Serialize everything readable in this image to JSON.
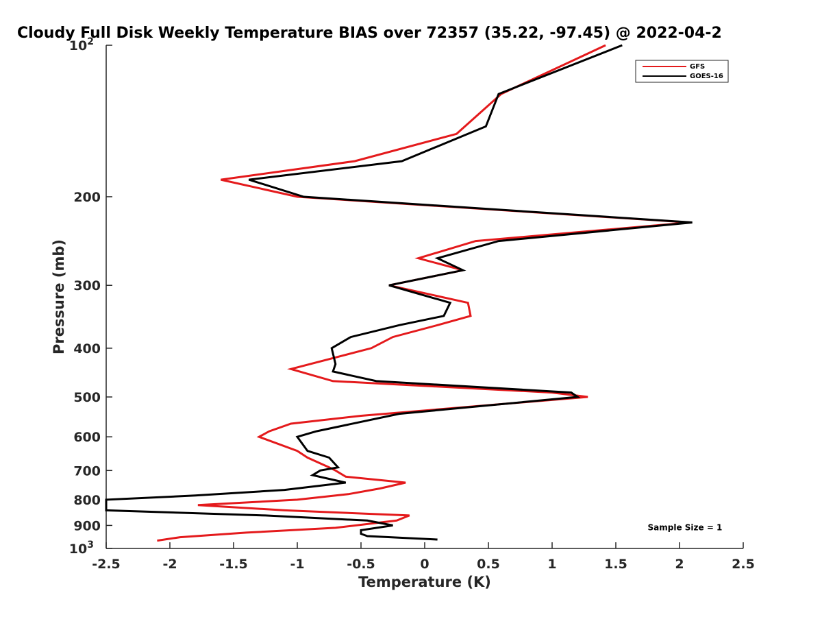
{
  "chart_data": {
    "type": "line",
    "title": "Cloudy Full Disk Weekly Temperature BIAS over 72357 (35.22, -97.45) @ 2022-04-2",
    "xlabel": "Temperature (K)",
    "ylabel": "Pressure (mb)",
    "xlim": [
      -2.5,
      2.5
    ],
    "ylim": [
      100,
      1000
    ],
    "yscale": "log",
    "y_reversed": true,
    "grid": false,
    "legend_position": "top-right",
    "x_ticks": [
      -2.5,
      -2,
      -1.5,
      -1,
      -0.5,
      0,
      0.5,
      1,
      1.5,
      2,
      2.5
    ],
    "x_tick_labels": [
      "-2.5",
      "-2",
      "-1.5",
      "-1",
      "-0.5",
      "0",
      "0.5",
      "1",
      "1.5",
      "2",
      "2.5"
    ],
    "y_ticks": [
      {
        "value": 100,
        "base": "10",
        "exp": "2"
      },
      {
        "value": 200,
        "label": "200"
      },
      {
        "value": 300,
        "label": "300"
      },
      {
        "value": 400,
        "label": "400"
      },
      {
        "value": 500,
        "label": "500"
      },
      {
        "value": 600,
        "label": "600"
      },
      {
        "value": 700,
        "label": "700"
      },
      {
        "value": 800,
        "label": "800"
      },
      {
        "value": 900,
        "label": "900"
      },
      {
        "value": 1000,
        "base": "10",
        "exp": "3"
      }
    ],
    "series": [
      {
        "name": "GFS",
        "color": "#e41a1c",
        "points": [
          [
            1.42,
            100
          ],
          [
            0.6,
            125
          ],
          [
            0.25,
            150
          ],
          [
            -0.55,
            170
          ],
          [
            -1.6,
            185
          ],
          [
            -1.0,
            200
          ],
          [
            2.08,
            225
          ],
          [
            0.4,
            245
          ],
          [
            -0.05,
            265
          ],
          [
            0.3,
            280
          ],
          [
            -0.28,
            300
          ],
          [
            0.34,
            325
          ],
          [
            0.36,
            345
          ],
          [
            0.1,
            360
          ],
          [
            -0.25,
            380
          ],
          [
            -0.42,
            400
          ],
          [
            -1.05,
            440
          ],
          [
            -0.72,
            465
          ],
          [
            1.0,
            490
          ],
          [
            1.28,
            500
          ],
          [
            -0.5,
            545
          ],
          [
            -1.05,
            565
          ],
          [
            -1.22,
            585
          ],
          [
            -1.3,
            600
          ],
          [
            -1.0,
            640
          ],
          [
            -0.92,
            660
          ],
          [
            -0.75,
            690
          ],
          [
            -0.7,
            700
          ],
          [
            -0.62,
            720
          ],
          [
            -0.15,
            740
          ],
          [
            -0.35,
            760
          ],
          [
            -0.6,
            780
          ],
          [
            -1.0,
            800
          ],
          [
            -1.78,
            820
          ],
          [
            -1.1,
            840
          ],
          [
            -0.12,
            860
          ],
          [
            -0.22,
            880
          ],
          [
            -0.7,
            910
          ],
          [
            -1.4,
            930
          ],
          [
            -1.92,
            950
          ],
          [
            -2.1,
            965
          ]
        ]
      },
      {
        "name": "GOES-16",
        "color": "#000000",
        "points": [
          [
            1.55,
            100
          ],
          [
            0.58,
            125
          ],
          [
            0.48,
            145
          ],
          [
            -0.18,
            170
          ],
          [
            -1.38,
            185
          ],
          [
            -0.95,
            200
          ],
          [
            2.1,
            225
          ],
          [
            0.58,
            245
          ],
          [
            0.1,
            265
          ],
          [
            0.3,
            280
          ],
          [
            -0.28,
            300
          ],
          [
            0.2,
            325
          ],
          [
            0.15,
            345
          ],
          [
            -0.2,
            360
          ],
          [
            -0.58,
            380
          ],
          [
            -0.73,
            400
          ],
          [
            -0.7,
            430
          ],
          [
            -0.72,
            445
          ],
          [
            -0.38,
            465
          ],
          [
            1.15,
            490
          ],
          [
            1.2,
            500
          ],
          [
            -0.2,
            540
          ],
          [
            -0.85,
            585
          ],
          [
            -1.0,
            600
          ],
          [
            -0.92,
            640
          ],
          [
            -0.75,
            660
          ],
          [
            -0.68,
            690
          ],
          [
            -0.82,
            700
          ],
          [
            -0.88,
            715
          ],
          [
            -0.62,
            740
          ],
          [
            -1.1,
            765
          ],
          [
            -1.8,
            785
          ],
          [
            -2.5,
            800
          ],
          [
            -2.5,
            840
          ],
          [
            -1.25,
            860
          ],
          [
            -0.45,
            880
          ],
          [
            -0.25,
            900
          ],
          [
            -0.5,
            920
          ],
          [
            -0.5,
            935
          ],
          [
            -0.45,
            945
          ],
          [
            0.1,
            960
          ]
        ]
      }
    ],
    "annotations": [
      {
        "text": "Sample Size = 1",
        "x": 1.75,
        "y": 920
      }
    ]
  }
}
